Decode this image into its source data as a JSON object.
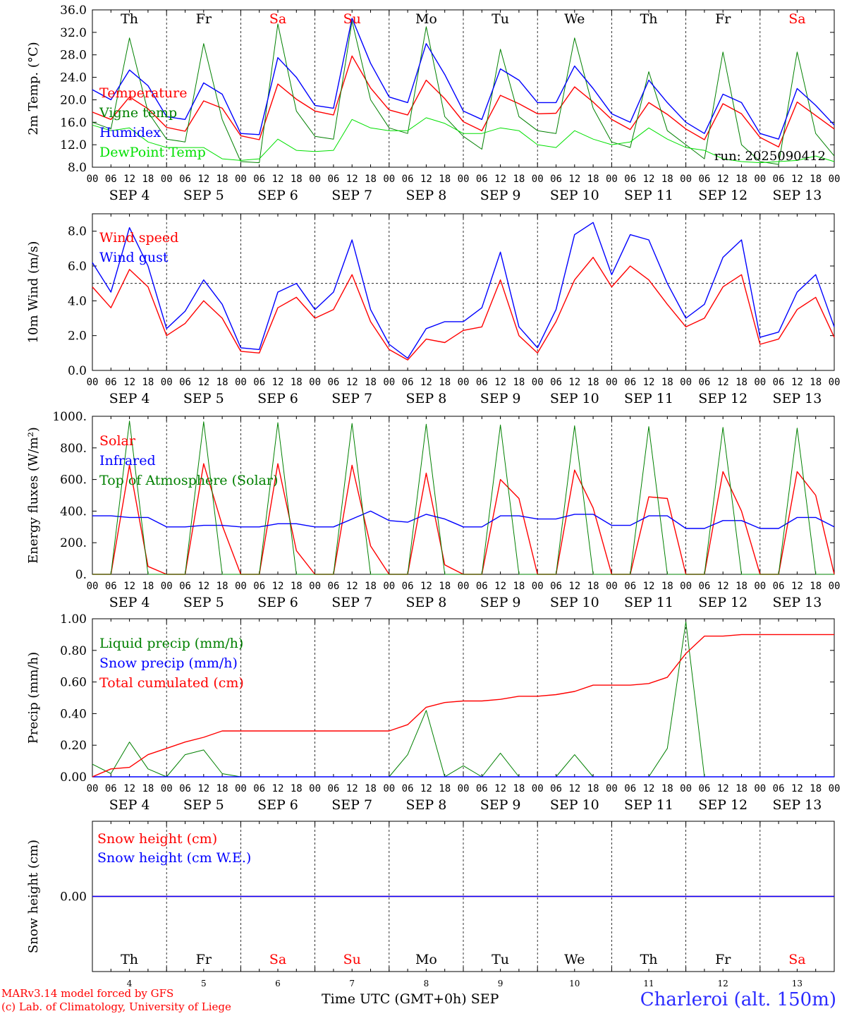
{
  "run_label": "run: 2025090412",
  "station": "Charleroi (alt. 150m)",
  "xaxis_title": "Time UTC (GMT+0h) SEP",
  "credits": [
    "MARv3.14 model forced by GFS",
    "(c) Lab. of Climatology, University of Liege"
  ],
  "days": [
    {
      "abbr": "Th",
      "date": "SEP  4",
      "num": "4",
      "weekend": false
    },
    {
      "abbr": "Fr",
      "date": "SEP  5",
      "num": "5",
      "weekend": false
    },
    {
      "abbr": "Sa",
      "date": "SEP  6",
      "num": "6",
      "weekend": true
    },
    {
      "abbr": "Su",
      "date": "SEP  7",
      "num": "7",
      "weekend": true
    },
    {
      "abbr": "Mo",
      "date": "SEP  8",
      "num": "8",
      "weekend": false
    },
    {
      "abbr": "Tu",
      "date": "SEP  9",
      "num": "9",
      "weekend": false
    },
    {
      "abbr": "We",
      "date": "SEP 10",
      "num": "10",
      "weekend": false
    },
    {
      "abbr": "Th",
      "date": "SEP 11",
      "num": "11",
      "weekend": false
    },
    {
      "abbr": "Fr",
      "date": "SEP 12",
      "num": "12",
      "weekend": false
    },
    {
      "abbr": "Sa",
      "date": "SEP 13",
      "num": "13",
      "weekend": true
    }
  ],
  "hour_ticks": [
    "00",
    "06",
    "12",
    "18"
  ],
  "colors": {
    "red": "#ff0000",
    "blue": "#0000ff",
    "green": "#008000",
    "lightgreen": "#00e000",
    "weekday": "#000000",
    "weekend": "#ff0000"
  },
  "chart_data": [
    {
      "id": "temperature",
      "type": "line",
      "ylabel": "2m Temp. (°C)",
      "ylim": [
        8,
        36
      ],
      "yticks": [
        "8.0",
        "12.0",
        "16.0",
        "20.0",
        "24.0",
        "28.0",
        "32.0",
        "36.0"
      ],
      "ytick_values": [
        8,
        12,
        16,
        20,
        24,
        28,
        32,
        36
      ],
      "x_start": "SEP 4 00",
      "x_step_hours": 6,
      "series": [
        {
          "name": "Temperature",
          "color": "#ff0000",
          "values": [
            17.8,
            16.5,
            20.5,
            18.4,
            15.1,
            14.4,
            19.8,
            18.5,
            13.6,
            12.9,
            22.8,
            20.1,
            18.0,
            17.3,
            27.8,
            22.1,
            18.2,
            17.3,
            23.5,
            20.2,
            16.1,
            14.5,
            20.8,
            19.3,
            17.5,
            17.6,
            22.3,
            19.6,
            16.5,
            14.7,
            19.5,
            17.4,
            14.8,
            12.9,
            19.3,
            17.5,
            13.3,
            11.6,
            19.6,
            17.2,
            14.8
          ]
        },
        {
          "name": "Vigne temp",
          "color": "#008000",
          "values": [
            16.0,
            14.8,
            31.0,
            17.8,
            13.0,
            12.5,
            30.0,
            16.5,
            9.0,
            8.8,
            33.5,
            18.0,
            13.5,
            13.0,
            34.0,
            20.0,
            15.0,
            14.0,
            33.0,
            17.0,
            13.5,
            11.2,
            29.0,
            17.0,
            14.5,
            14.0,
            31.0,
            18.5,
            12.5,
            11.5,
            25.0,
            14.5,
            12.0,
            9.5,
            28.5,
            12.0,
            9.0,
            8.5,
            28.5,
            14.0,
            10.0
          ]
        },
        {
          "name": "Humidex",
          "color": "#0000ff",
          "values": [
            21.8,
            20.0,
            25.3,
            22.5,
            17.0,
            16.5,
            23.0,
            21.0,
            14.0,
            13.8,
            27.5,
            24.0,
            19.0,
            18.5,
            34.5,
            26.5,
            20.5,
            19.5,
            30.0,
            24.5,
            18.0,
            16.5,
            25.5,
            23.5,
            19.5,
            19.5,
            26.0,
            22.0,
            17.5,
            16.0,
            23.5,
            19.5,
            16.0,
            14.0,
            21.0,
            19.5,
            14.0,
            13.0,
            22.0,
            19.0,
            15.5
          ]
        },
        {
          "name": "DewPoint Temp",
          "color": "#00e000",
          "values": [
            15.5,
            14.5,
            15.0,
            12.5,
            11.5,
            11.5,
            11.5,
            9.5,
            9.2,
            9.5,
            13.0,
            11.0,
            10.8,
            11.0,
            16.5,
            15.0,
            14.5,
            14.5,
            16.8,
            15.8,
            14.0,
            14.0,
            15.0,
            14.5,
            12.0,
            11.5,
            14.5,
            13.0,
            12.0,
            12.5,
            15.0,
            13.0,
            11.5,
            11.0,
            9.5,
            9.0,
            8.8,
            9.0,
            9.2,
            10.0,
            9.0
          ]
        }
      ]
    },
    {
      "id": "wind",
      "type": "line",
      "ylabel": "10m Wind (m/s)",
      "ylim": [
        0,
        9
      ],
      "yticks": [
        "0.0",
        "2.0",
        "4.0",
        "6.0",
        "8.0"
      ],
      "ytick_values": [
        0,
        2,
        4,
        6,
        8
      ],
      "reference_line": 5.0,
      "x_start": "SEP 4 00",
      "x_step_hours": 6,
      "series": [
        {
          "name": "Wind speed",
          "color": "#ff0000",
          "values": [
            4.8,
            3.6,
            5.8,
            4.8,
            2.0,
            2.7,
            4.0,
            3.0,
            1.1,
            1.0,
            3.6,
            4.2,
            3.0,
            3.5,
            5.5,
            2.8,
            1.2,
            0.6,
            1.8,
            1.6,
            2.3,
            2.5,
            5.2,
            2.0,
            1.0,
            2.8,
            5.2,
            6.5,
            4.8,
            6.0,
            5.2,
            3.8,
            2.5,
            3.0,
            4.8,
            5.5,
            1.5,
            1.8,
            3.5,
            4.2,
            1.9
          ]
        },
        {
          "name": "Wind gust",
          "color": "#0000ff",
          "values": [
            6.2,
            4.5,
            8.2,
            6.0,
            2.4,
            3.4,
            5.2,
            3.8,
            1.3,
            1.2,
            4.5,
            5.0,
            3.5,
            4.5,
            7.5,
            3.5,
            1.5,
            0.7,
            2.4,
            2.8,
            2.8,
            3.6,
            6.8,
            2.5,
            1.3,
            3.5,
            7.8,
            8.5,
            5.5,
            7.8,
            7.5,
            5.0,
            3.0,
            3.8,
            6.5,
            7.5,
            1.9,
            2.2,
            4.5,
            5.5,
            2.5
          ]
        }
      ]
    },
    {
      "id": "energy",
      "type": "line",
      "ylabel": "Energy fluxes (W/m²)",
      "ylim": [
        0,
        1000
      ],
      "yticks": [
        "0.",
        "200.",
        "400.",
        "600.",
        "800.",
        "1000."
      ],
      "ytick_values": [
        0,
        200,
        400,
        600,
        800,
        1000
      ],
      "x_start": "SEP 4 00",
      "x_step_hours": 6,
      "series": [
        {
          "name": "Solar",
          "color": "#ff0000",
          "values": [
            0,
            0,
            690,
            50,
            0,
            0,
            700,
            310,
            0,
            0,
            700,
            150,
            0,
            0,
            690,
            180,
            0,
            0,
            640,
            60,
            0,
            0,
            600,
            480,
            0,
            0,
            660,
            420,
            0,
            0,
            490,
            480,
            0,
            0,
            650,
            400,
            0,
            0,
            650,
            500,
            0
          ]
        },
        {
          "name": "Infrared",
          "color": "#0000ff",
          "values": [
            370,
            370,
            360,
            360,
            300,
            300,
            310,
            310,
            300,
            300,
            320,
            320,
            300,
            300,
            350,
            400,
            340,
            330,
            380,
            350,
            300,
            300,
            370,
            370,
            350,
            350,
            380,
            380,
            310,
            310,
            370,
            370,
            290,
            290,
            340,
            340,
            290,
            290,
            360,
            360,
            300
          ]
        },
        {
          "name": "Top of Atmosphere (Solar)",
          "color": "#008000",
          "values": [
            0,
            0,
            970,
            0,
            0,
            0,
            965,
            0,
            0,
            0,
            960,
            0,
            0,
            0,
            955,
            0,
            0,
            0,
            950,
            0,
            0,
            0,
            945,
            0,
            0,
            0,
            940,
            0,
            0,
            0,
            935,
            0,
            0,
            0,
            930,
            0,
            0,
            0,
            925,
            0,
            0
          ]
        }
      ]
    },
    {
      "id": "precip",
      "type": "line",
      "ylabel": "Precip (mm/h)",
      "ylim": [
        0,
        1.0
      ],
      "yticks": [
        "0.00",
        "0.20",
        "0.40",
        "0.60",
        "0.80",
        "1.00"
      ],
      "ytick_values": [
        0,
        0.2,
        0.4,
        0.6,
        0.8,
        1.0
      ],
      "x_start": "SEP 4 00",
      "x_step_hours": 6,
      "series": [
        {
          "name": "Liquid precip (mm/h)",
          "color": "#008000",
          "values": [
            0.08,
            0.02,
            0.22,
            0.05,
            0.0,
            0.14,
            0.17,
            0.02,
            0.0,
            0.0,
            0.0,
            0.0,
            0.0,
            0.0,
            0.0,
            0.0,
            0.0,
            0.14,
            0.42,
            0.0,
            0.07,
            0.0,
            0.15,
            0.0,
            0.0,
            0.0,
            0.14,
            0.0,
            0.0,
            0.0,
            0.0,
            0.18,
            0.98,
            0.0,
            0.0,
            0.0,
            0.0,
            0.0,
            0.0,
            0.0,
            0.0
          ]
        },
        {
          "name": "Snow precip (mm/h)",
          "color": "#0000ff",
          "values": [
            0,
            0,
            0,
            0,
            0,
            0,
            0,
            0,
            0,
            0,
            0,
            0,
            0,
            0,
            0,
            0,
            0,
            0,
            0,
            0,
            0,
            0,
            0,
            0,
            0,
            0,
            0,
            0,
            0,
            0,
            0,
            0,
            0,
            0,
            0,
            0,
            0,
            0,
            0,
            0,
            0
          ]
        },
        {
          "name": "Total cumulated (cm)",
          "color": "#ff0000",
          "values": [
            0.0,
            0.05,
            0.06,
            0.14,
            0.18,
            0.22,
            0.25,
            0.29,
            0.29,
            0.29,
            0.29,
            0.29,
            0.29,
            0.29,
            0.29,
            0.29,
            0.29,
            0.33,
            0.44,
            0.47,
            0.48,
            0.48,
            0.49,
            0.51,
            0.51,
            0.52,
            0.54,
            0.58,
            0.58,
            0.58,
            0.59,
            0.63,
            0.78,
            0.89,
            0.89,
            0.9,
            0.9,
            0.9,
            0.9,
            0.9,
            0.9
          ]
        }
      ]
    },
    {
      "id": "snow",
      "type": "line",
      "ylabel": "Snow height (cm)",
      "ylim": [
        -0.01,
        0.01
      ],
      "yticks": [
        "0.00"
      ],
      "ytick_values": [
        0
      ],
      "x_start": "SEP 4 00",
      "x_step_hours": 6,
      "series": [
        {
          "name": "Snow height (cm)",
          "color": "#ff0000",
          "values": [
            0,
            0,
            0,
            0,
            0,
            0,
            0,
            0,
            0,
            0,
            0,
            0,
            0,
            0,
            0,
            0,
            0,
            0,
            0,
            0,
            0,
            0,
            0,
            0,
            0,
            0,
            0,
            0,
            0,
            0,
            0,
            0,
            0,
            0,
            0,
            0,
            0,
            0,
            0,
            0,
            0
          ]
        },
        {
          "name": "Snow height (cm W.E.)",
          "color": "#0000ff",
          "values": [
            0,
            0,
            0,
            0,
            0,
            0,
            0,
            0,
            0,
            0,
            0,
            0,
            0,
            0,
            0,
            0,
            0,
            0,
            0,
            0,
            0,
            0,
            0,
            0,
            0,
            0,
            0,
            0,
            0,
            0,
            0,
            0,
            0,
            0,
            0,
            0,
            0,
            0,
            0,
            0,
            0
          ]
        }
      ]
    }
  ]
}
